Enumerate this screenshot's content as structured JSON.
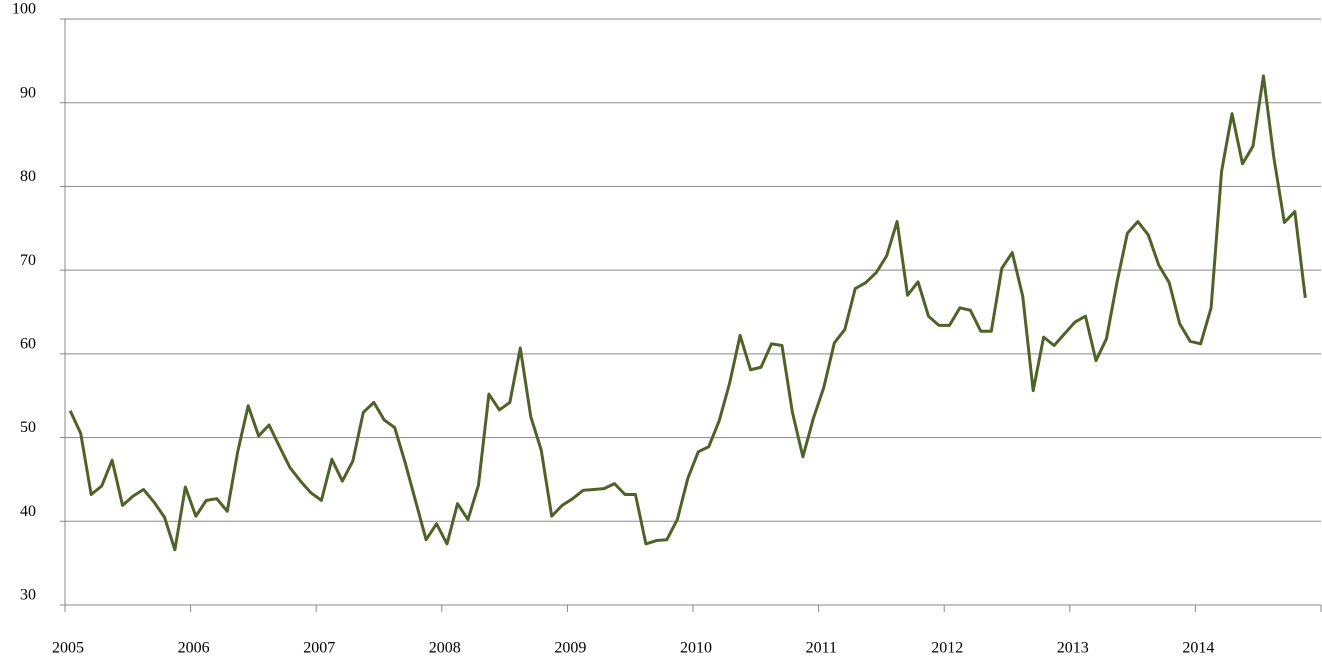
{
  "chart_data": {
    "type": "line",
    "categories": [
      "2005",
      null,
      null,
      null,
      null,
      null,
      null,
      null,
      null,
      null,
      null,
      null,
      "2006",
      null,
      null,
      null,
      null,
      null,
      null,
      null,
      null,
      null,
      null,
      null,
      "2007",
      null,
      null,
      null,
      null,
      null,
      null,
      null,
      null,
      null,
      null,
      null,
      "2008",
      null,
      null,
      null,
      null,
      null,
      null,
      null,
      null,
      null,
      null,
      null,
      "2009",
      null,
      null,
      null,
      null,
      null,
      null,
      null,
      null,
      null,
      null,
      null,
      "2010",
      null,
      null,
      null,
      null,
      null,
      null,
      null,
      null,
      null,
      null,
      null,
      "2011",
      null,
      null,
      null,
      null,
      null,
      null,
      null,
      null,
      null,
      null,
      null,
      "2012",
      null,
      null,
      null,
      null,
      null,
      null,
      null,
      null,
      null,
      null,
      null,
      "2013",
      null,
      null,
      null,
      null,
      null,
      null,
      null,
      null,
      null,
      null,
      null,
      "2014",
      null,
      null,
      null,
      null,
      null,
      null,
      null,
      null,
      null,
      null
    ],
    "series": [
      {
        "color": "#4f6228",
        "values": [
          53.2,
          50.5,
          43.2,
          44.2,
          47.3,
          41.9,
          43,
          43.8,
          42.3,
          40.5,
          36.6,
          44.1,
          40.6,
          42.5,
          42.7,
          41.2,
          48.3,
          53.8,
          50.2,
          51.5,
          48.9,
          46.4,
          44.8,
          43.4,
          42.5,
          47.4,
          44.8,
          47.2,
          53,
          54.2,
          52.1,
          51.2,
          47,
          42.4,
          37.8,
          39.7,
          37.3,
          42.1,
          40.2,
          44.3,
          55.2,
          53.3,
          54.2,
          60.7,
          52.5,
          48.5,
          40.6,
          41.9,
          42.7,
          43.7,
          43.8,
          43.9,
          44.5,
          43.2,
          43.2,
          37.3,
          37.7,
          37.8,
          40.2,
          45.1,
          48.3,
          48.9,
          52,
          56.5,
          62.2,
          58.1,
          58.4,
          61.2,
          61,
          53,
          47.7,
          52.3,
          56,
          61.3,
          62.9,
          67.8,
          68.5,
          69.7,
          71.7,
          75.8,
          67,
          68.6,
          64.5,
          63.4,
          63.4,
          65.5,
          65.2,
          62.7,
          62.7,
          70.2,
          72.1,
          66.9,
          55.6,
          62,
          61,
          62.4,
          63.8,
          64.5,
          59.2,
          61.8,
          68.5,
          74.4,
          75.8,
          74.2,
          70.6,
          68.5,
          63.6,
          61.5,
          61.2,
          65.5,
          81.8,
          88.7,
          82.7,
          84.8,
          93.2,
          83.4,
          75.7,
          77,
          66.7
        ]
      }
    ],
    "ylim": [
      30,
      100
    ],
    "yticks": [
      30,
      40,
      50,
      60,
      70,
      80,
      90,
      100
    ],
    "grid": true
  }
}
